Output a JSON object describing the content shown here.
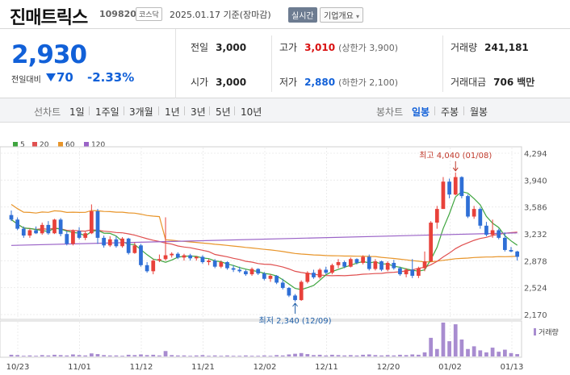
{
  "header": {
    "name": "진매트릭스",
    "code": "109820",
    "market": "코스닥",
    "date": "2025.01.17 기준(장마감)",
    "live": "실시간",
    "info": "기업개요"
  },
  "summary": {
    "price": "2,930",
    "prev_label": "전일대비",
    "change": "70",
    "change_pct": "-2.33%",
    "direction": "down",
    "stats": {
      "prev_close_label": "전일",
      "prev_close": "3,000",
      "high_label": "고가",
      "high": "3,010",
      "upper_limit": "(상한가 3,900)",
      "volume_label": "거래량",
      "volume": "241,181",
      "open_label": "시가",
      "open": "3,000",
      "low_label": "저가",
      "low": "2,880",
      "lower_limit": "(하한가 2,100)",
      "amount_label": "거래대금",
      "amount": "706",
      "amount_unit": "백만"
    }
  },
  "periods": {
    "label": "선차트",
    "items": [
      "1일",
      "1주일",
      "3개월",
      "1년",
      "3년",
      "5년",
      "10년"
    ]
  },
  "candle_types": {
    "label": "봉차트",
    "items": [
      "일봉",
      "주봉",
      "월봉"
    ],
    "active": "일봉"
  },
  "colors": {
    "up": "#e8413a",
    "down": "#2f6fd6",
    "ma5": "#3fa53f",
    "ma20": "#e05050",
    "ma60": "#e8952a",
    "ma120": "#9a63c7"
  },
  "chart_data": {
    "type": "candlestick",
    "legend": [
      "5",
      "20",
      "60",
      "120"
    ],
    "y_ticks": [
      "4,294",
      "3,940",
      "3,586",
      "3,232",
      "2,878",
      "2,524",
      "2,170"
    ],
    "ylim": [
      2170,
      4294
    ],
    "x_ticks": [
      "10/23",
      "11/01",
      "11/12",
      "11/21",
      "12/02",
      "12/11",
      "12/20",
      "01/02",
      "01/13"
    ],
    "volume_label": "거래량",
    "max_annotation": "최고 4,040 (01/08)",
    "min_annotation": "최저 2,340 (12/09)",
    "candles": [
      {
        "o": 3480,
        "h": 3540,
        "l": 3400,
        "c": 3420
      },
      {
        "o": 3420,
        "h": 3450,
        "l": 3280,
        "c": 3300
      },
      {
        "o": 3300,
        "h": 3330,
        "l": 3180,
        "c": 3210
      },
      {
        "o": 3210,
        "h": 3300,
        "l": 3180,
        "c": 3280
      },
      {
        "o": 3280,
        "h": 3330,
        "l": 3230,
        "c": 3240
      },
      {
        "o": 3240,
        "h": 3380,
        "l": 3220,
        "c": 3350
      },
      {
        "o": 3350,
        "h": 3400,
        "l": 3220,
        "c": 3240
      },
      {
        "o": 3240,
        "h": 3430,
        "l": 3230,
        "c": 3420
      },
      {
        "o": 3420,
        "h": 3440,
        "l": 3200,
        "c": 3230
      },
      {
        "o": 3230,
        "h": 3270,
        "l": 3080,
        "c": 3100
      },
      {
        "o": 3100,
        "h": 3290,
        "l": 3080,
        "c": 3270
      },
      {
        "o": 3270,
        "h": 3320,
        "l": 3160,
        "c": 3180
      },
      {
        "o": 3180,
        "h": 3260,
        "l": 3150,
        "c": 3240
      },
      {
        "o": 3240,
        "h": 3620,
        "l": 3230,
        "c": 3530
      },
      {
        "o": 3530,
        "h": 3560,
        "l": 3100,
        "c": 3180
      },
      {
        "o": 3180,
        "h": 3210,
        "l": 3050,
        "c": 3080
      },
      {
        "o": 3080,
        "h": 3200,
        "l": 3060,
        "c": 3160
      },
      {
        "o": 3160,
        "h": 3200,
        "l": 3050,
        "c": 3070
      },
      {
        "o": 3070,
        "h": 3190,
        "l": 3050,
        "c": 3170
      },
      {
        "o": 3170,
        "h": 3180,
        "l": 2960,
        "c": 2980
      },
      {
        "o": 2980,
        "h": 3120,
        "l": 2970,
        "c": 3080
      },
      {
        "o": 3080,
        "h": 3100,
        "l": 2800,
        "c": 2820
      },
      {
        "o": 2820,
        "h": 2860,
        "l": 2720,
        "c": 2740
      },
      {
        "o": 2740,
        "h": 2900,
        "l": 2700,
        "c": 2880
      },
      {
        "o": 2880,
        "h": 2960,
        "l": 2860,
        "c": 2900
      },
      {
        "o": 2900,
        "h": 3450,
        "l": 2880,
        "c": 2950
      },
      {
        "o": 2950,
        "h": 2990,
        "l": 2920,
        "c": 2970
      },
      {
        "o": 2970,
        "h": 2990,
        "l": 2900,
        "c": 2920
      },
      {
        "o": 2920,
        "h": 2970,
        "l": 2880,
        "c": 2950
      },
      {
        "o": 2950,
        "h": 2970,
        "l": 2880,
        "c": 2910
      },
      {
        "o": 2910,
        "h": 2940,
        "l": 2880,
        "c": 2930
      },
      {
        "o": 2930,
        "h": 2950,
        "l": 2840,
        "c": 2860
      },
      {
        "o": 2860,
        "h": 2900,
        "l": 2820,
        "c": 2880
      },
      {
        "o": 2880,
        "h": 2900,
        "l": 2780,
        "c": 2800
      },
      {
        "o": 2800,
        "h": 2880,
        "l": 2780,
        "c": 2860
      },
      {
        "o": 2860,
        "h": 2870,
        "l": 2760,
        "c": 2780
      },
      {
        "o": 2780,
        "h": 2820,
        "l": 2730,
        "c": 2760
      },
      {
        "o": 2760,
        "h": 2800,
        "l": 2720,
        "c": 2740
      },
      {
        "o": 2740,
        "h": 2760,
        "l": 2680,
        "c": 2700
      },
      {
        "o": 2700,
        "h": 2790,
        "l": 2680,
        "c": 2770
      },
      {
        "o": 2770,
        "h": 2780,
        "l": 2690,
        "c": 2710
      },
      {
        "o": 2710,
        "h": 2730,
        "l": 2620,
        "c": 2640
      },
      {
        "o": 2640,
        "h": 2700,
        "l": 2600,
        "c": 2680
      },
      {
        "o": 2680,
        "h": 2690,
        "l": 2570,
        "c": 2590
      },
      {
        "o": 2590,
        "h": 2640,
        "l": 2500,
        "c": 2520
      },
      {
        "o": 2520,
        "h": 2530,
        "l": 2400,
        "c": 2420
      },
      {
        "o": 2420,
        "h": 2440,
        "l": 2340,
        "c": 2360
      },
      {
        "o": 2360,
        "h": 2620,
        "l": 2350,
        "c": 2600
      },
      {
        "o": 2600,
        "h": 2740,
        "l": 2580,
        "c": 2720
      },
      {
        "o": 2720,
        "h": 2760,
        "l": 2640,
        "c": 2660
      },
      {
        "o": 2660,
        "h": 2780,
        "l": 2640,
        "c": 2760
      },
      {
        "o": 2760,
        "h": 2800,
        "l": 2700,
        "c": 2720
      },
      {
        "o": 2720,
        "h": 2840,
        "l": 2700,
        "c": 2820
      },
      {
        "o": 2820,
        "h": 2900,
        "l": 2780,
        "c": 2860
      },
      {
        "o": 2860,
        "h": 2880,
        "l": 2780,
        "c": 2800
      },
      {
        "o": 2800,
        "h": 2920,
        "l": 2790,
        "c": 2900
      },
      {
        "o": 2900,
        "h": 2910,
        "l": 2830,
        "c": 2850
      },
      {
        "o": 2850,
        "h": 2950,
        "l": 2830,
        "c": 2930
      },
      {
        "o": 2930,
        "h": 2960,
        "l": 2750,
        "c": 2770
      },
      {
        "o": 2770,
        "h": 2900,
        "l": 2750,
        "c": 2870
      },
      {
        "o": 2870,
        "h": 2880,
        "l": 2740,
        "c": 2760
      },
      {
        "o": 2760,
        "h": 2870,
        "l": 2740,
        "c": 2850
      },
      {
        "o": 2850,
        "h": 2890,
        "l": 2760,
        "c": 2780
      },
      {
        "o": 2780,
        "h": 2800,
        "l": 2680,
        "c": 2700
      },
      {
        "o": 2700,
        "h": 2780,
        "l": 2660,
        "c": 2760
      },
      {
        "o": 2760,
        "h": 2900,
        "l": 2650,
        "c": 2680
      },
      {
        "o": 2680,
        "h": 2800,
        "l": 2650,
        "c": 2780
      },
      {
        "o": 2780,
        "h": 3000,
        "l": 2740,
        "c": 2870
      },
      {
        "o": 2870,
        "h": 3400,
        "l": 2860,
        "c": 3380
      },
      {
        "o": 3380,
        "h": 3600,
        "l": 3300,
        "c": 3560
      },
      {
        "o": 3560,
        "h": 3980,
        "l": 3560,
        "c": 3920
      },
      {
        "o": 3920,
        "h": 3960,
        "l": 3700,
        "c": 3750
      },
      {
        "o": 3750,
        "h": 4040,
        "l": 3740,
        "c": 3980
      },
      {
        "o": 3980,
        "h": 3990,
        "l": 3700,
        "c": 3730
      },
      {
        "o": 3730,
        "h": 3750,
        "l": 3440,
        "c": 3460
      },
      {
        "o": 3460,
        "h": 3600,
        "l": 3430,
        "c": 3560
      },
      {
        "o": 3560,
        "h": 3580,
        "l": 3300,
        "c": 3340
      },
      {
        "o": 3340,
        "h": 3390,
        "l": 3200,
        "c": 3220
      },
      {
        "o": 3220,
        "h": 3420,
        "l": 3180,
        "c": 3280
      },
      {
        "o": 3280,
        "h": 3300,
        "l": 3160,
        "c": 3180
      },
      {
        "o": 3180,
        "h": 3250,
        "l": 3000,
        "c": 3020
      },
      {
        "o": 3020,
        "h": 3060,
        "l": 2990,
        "c": 3000
      },
      {
        "o": 3000,
        "h": 3010,
        "l": 2880,
        "c": 2930
      }
    ],
    "volumes": [
      0.05,
      0.04,
      0.02,
      0.03,
      0.02,
      0.04,
      0.03,
      0.05,
      0.04,
      0.03,
      0.06,
      0.04,
      0.03,
      0.09,
      0.07,
      0.04,
      0.03,
      0.03,
      0.02,
      0.05,
      0.04,
      0.06,
      0.04,
      0.05,
      0.03,
      0.16,
      0.04,
      0.03,
      0.03,
      0.02,
      0.03,
      0.04,
      0.02,
      0.03,
      0.02,
      0.03,
      0.02,
      0.02,
      0.03,
      0.02,
      0.02,
      0.03,
      0.02,
      0.04,
      0.03,
      0.06,
      0.08,
      0.1,
      0.07,
      0.04,
      0.05,
      0.03,
      0.05,
      0.04,
      0.03,
      0.04,
      0.03,
      0.05,
      0.06,
      0.04,
      0.03,
      0.04,
      0.03,
      0.05,
      0.04,
      0.06,
      0.05,
      0.12,
      0.55,
      0.22,
      1.0,
      0.45,
      0.95,
      0.5,
      0.22,
      0.3,
      0.18,
      0.12,
      0.26,
      0.14,
      0.2,
      0.1,
      0.07
    ],
    "ma120": [
      3080,
      3245
    ],
    "x_tick_index": [
      0,
      18,
      35,
      50,
      64,
      78,
      91,
      104,
      117
    ]
  }
}
